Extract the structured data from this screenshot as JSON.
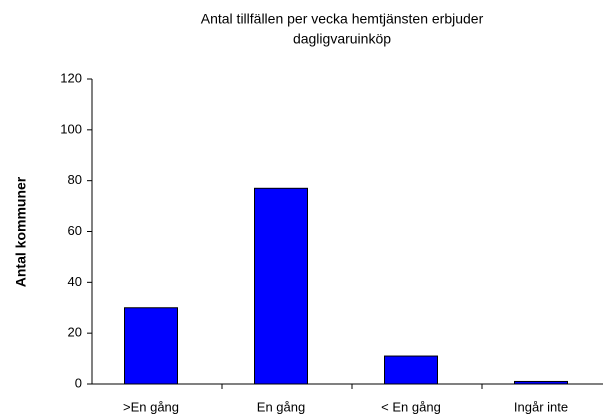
{
  "chart_data": {
    "type": "bar",
    "title": [
      "Antal tillfällen per vecka hemtjänsten erbjuder",
      "dagligvaruinköp"
    ],
    "y_label": "Antal kommuner",
    "categories": [
      ">En gång",
      "En gång",
      "< En gång",
      "Ingår inte"
    ],
    "values": [
      30,
      77,
      11,
      1
    ],
    "color": "#0000ff",
    "ylim": [
      0,
      120
    ],
    "yticks": [
      0,
      20,
      40,
      60,
      80,
      100,
      120
    ],
    "grid": false
  }
}
